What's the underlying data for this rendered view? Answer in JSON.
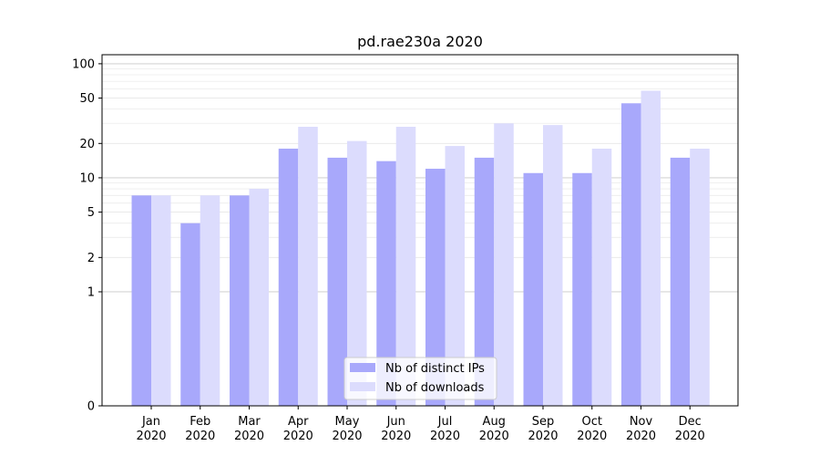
{
  "chart_data": {
    "type": "bar",
    "title": "pd.rae230a 2020",
    "xlabel": "",
    "ylabel": "",
    "categories": [
      "Jan\n2020",
      "Feb\n2020",
      "Mar\n2020",
      "Apr\n2020",
      "May\n2020",
      "Jun\n2020",
      "Jul\n2020",
      "Aug\n2020",
      "Sep\n2020",
      "Oct\n2020",
      "Nov\n2020",
      "Dec\n2020"
    ],
    "series": [
      {
        "name": "Nb of distinct IPs",
        "color": "#a8a8fb",
        "values": [
          7,
          4,
          7,
          18,
          15,
          14,
          12,
          15,
          11,
          11,
          45,
          15
        ]
      },
      {
        "name": "Nb of downloads",
        "color": "#dcdcfd",
        "values": [
          7,
          7,
          8,
          28,
          21,
          28,
          19,
          30,
          29,
          18,
          58,
          18
        ]
      }
    ],
    "y_scale": "symlog",
    "ylim": [
      0,
      120
    ],
    "y_ticks": [
      0,
      1,
      2,
      5,
      10,
      20,
      50,
      100
    ],
    "grid": true,
    "legend_position": "bottom-center"
  }
}
